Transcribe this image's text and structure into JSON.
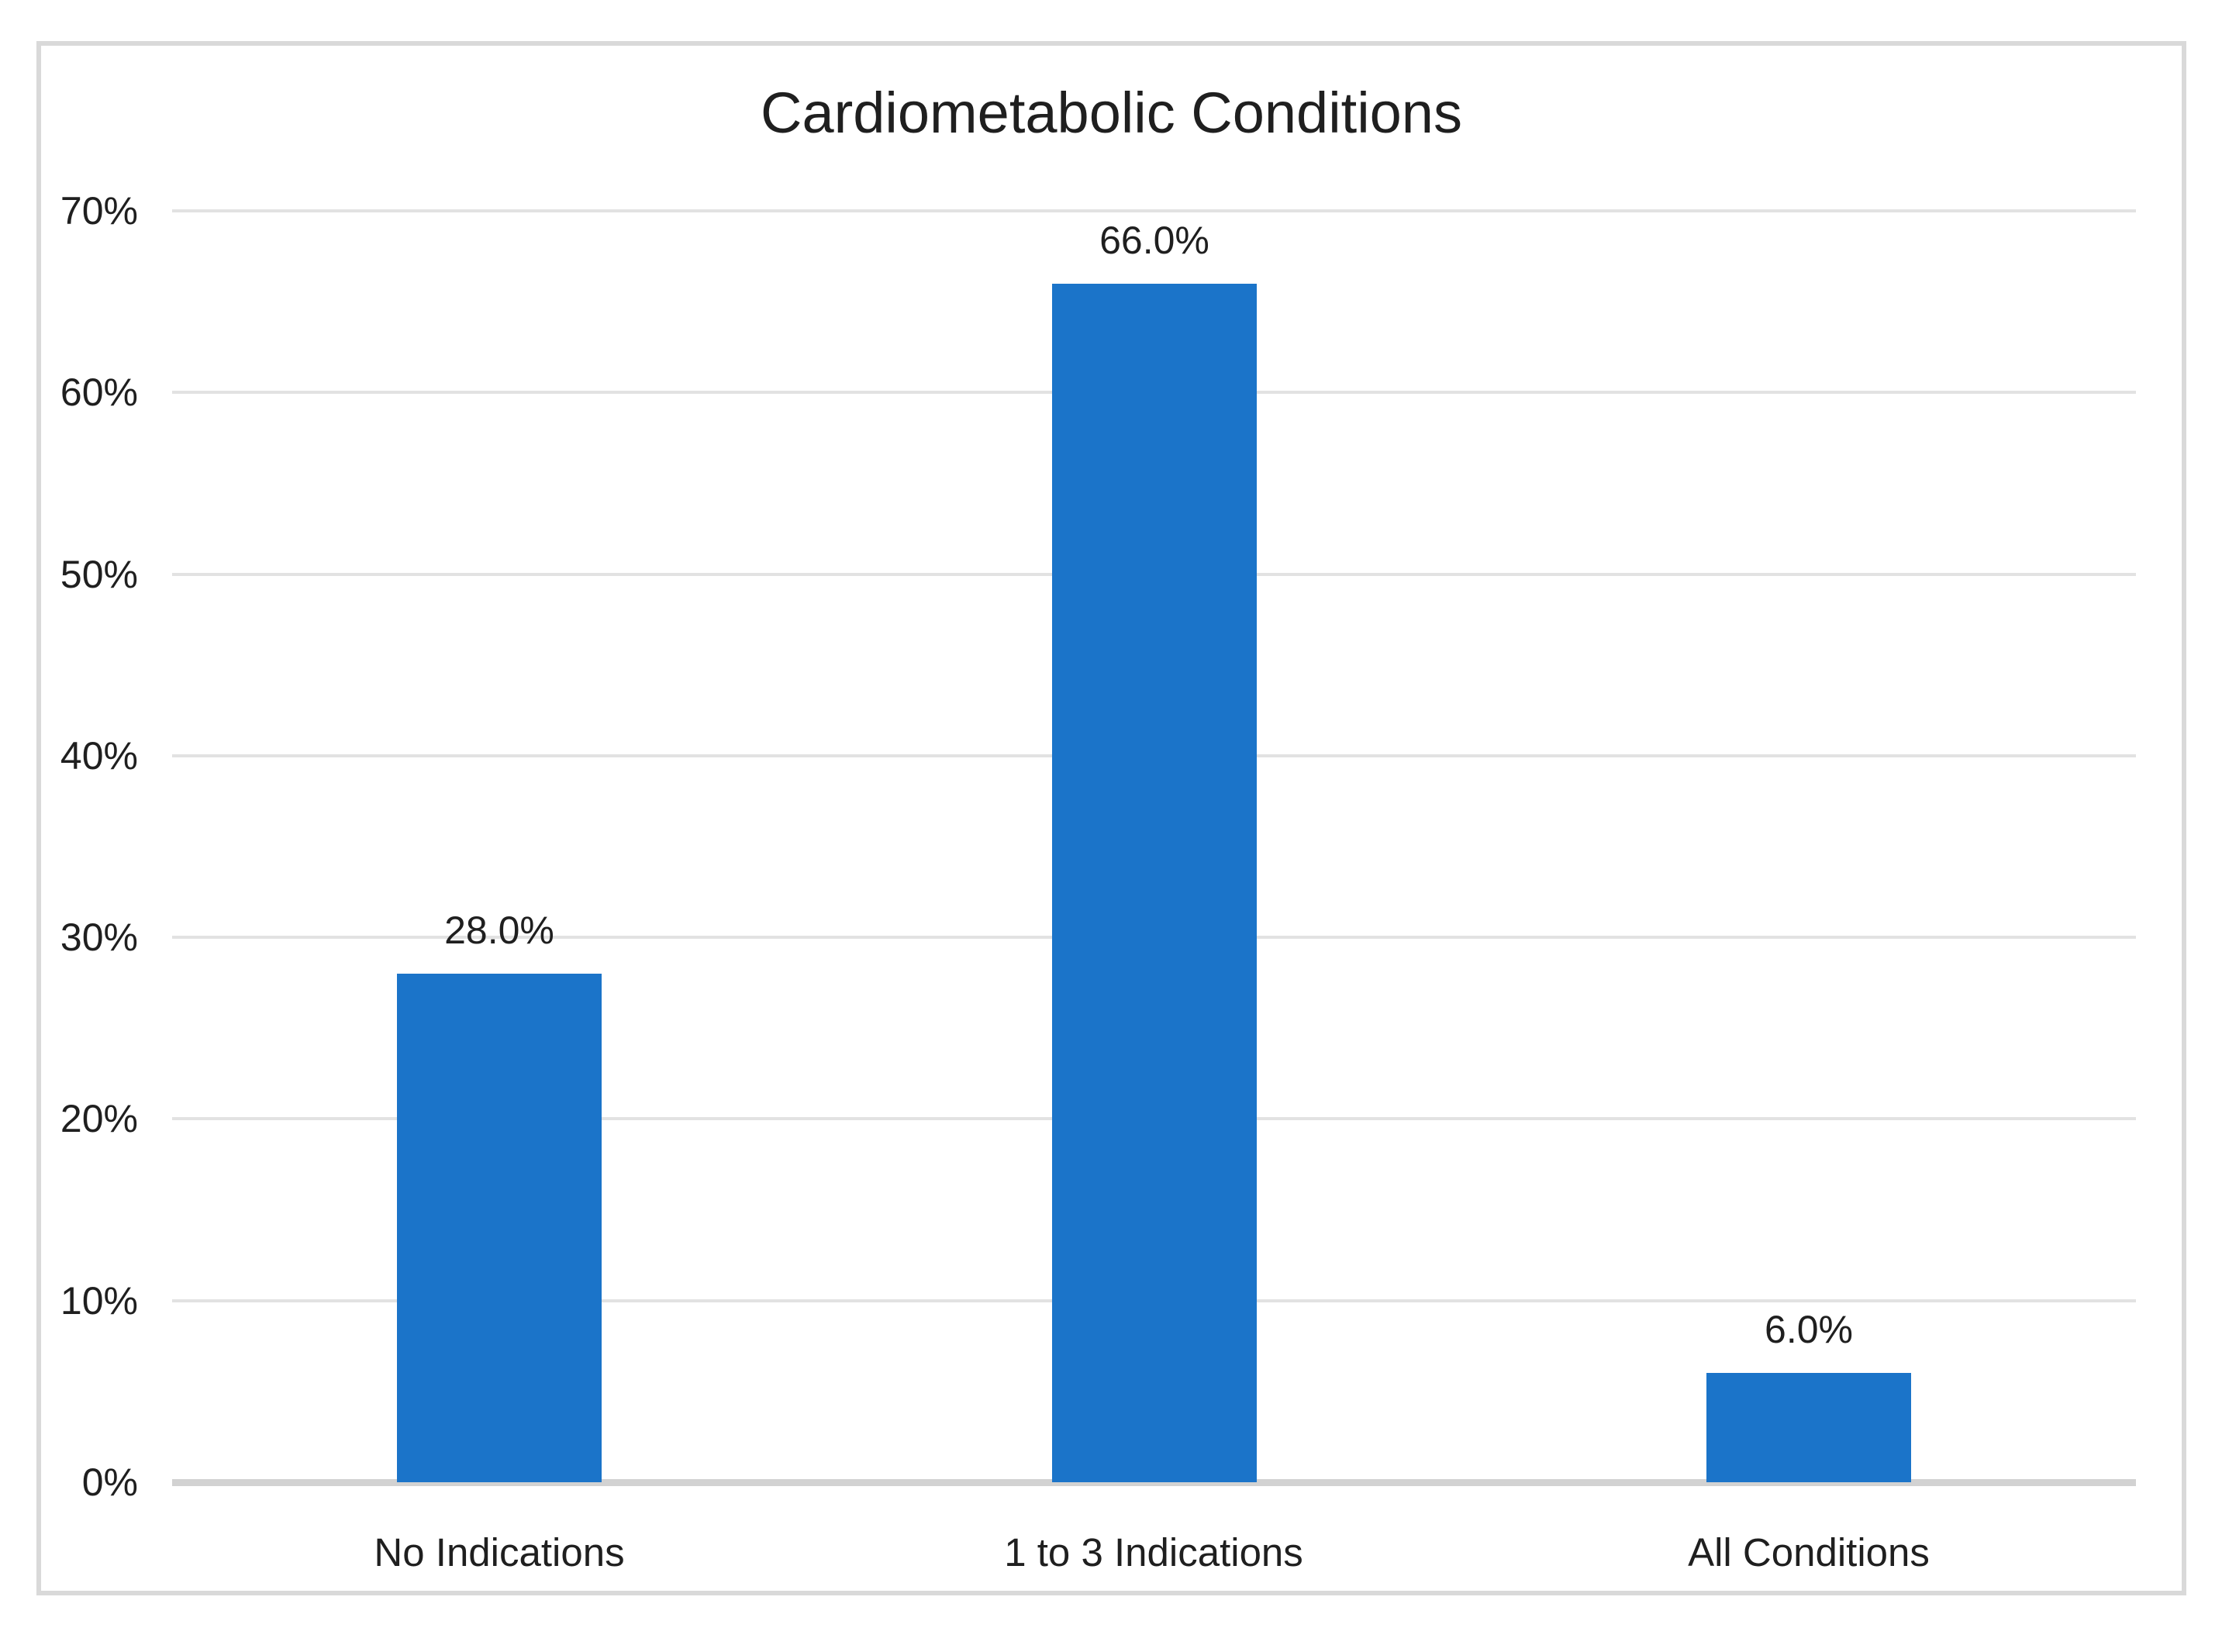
{
  "chart_data": {
    "type": "bar",
    "title": "Cardiometabolic Conditions",
    "categories": [
      "No Indications",
      "1 to 3 Indications",
      "All Conditions"
    ],
    "values": [
      28.0,
      66.0,
      6.0
    ],
    "data_labels": [
      "28.0%",
      "66.0%",
      "6.0%"
    ],
    "xlabel": "",
    "ylabel": "",
    "ylim": [
      0,
      70
    ],
    "y_tick_interval": 10,
    "y_tick_labels": [
      "0%",
      "10%",
      "20%",
      "30%",
      "40%",
      "50%",
      "60%",
      "70%"
    ],
    "legend": "none",
    "grid": "horizontal",
    "colors": {
      "bar": "#1B74C9",
      "gridline": "#E2E2E2",
      "axis_line": "#D2D2D2",
      "frame_border": "#D9D9D9",
      "text": "#1F1F1F",
      "background": "#FFFFFF"
    }
  }
}
